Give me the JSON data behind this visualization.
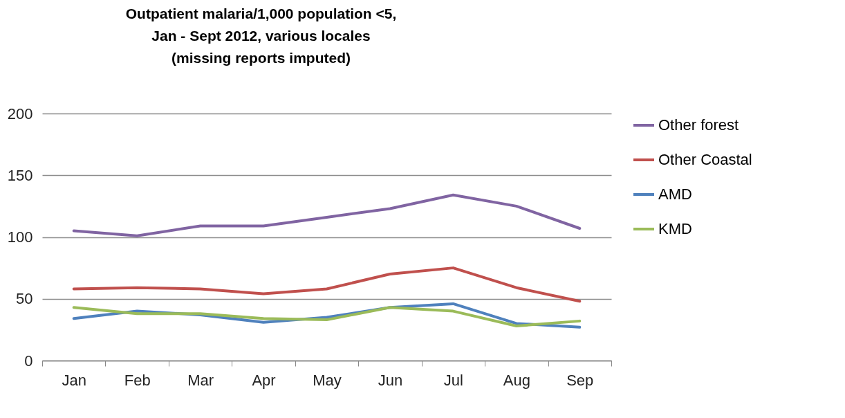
{
  "chart_data": {
    "type": "line",
    "title": "Outpatient malaria/1,000 population <5,\nJan - Sept 2012, various locales\n(missing reports imputed)",
    "categories": [
      "Jan",
      "Feb",
      "Mar",
      "Apr",
      "May",
      "Jun",
      "Jul",
      "Aug",
      "Sep"
    ],
    "series": [
      {
        "name": "Other forest",
        "color": "#8064a2",
        "values": [
          105,
          101,
          109,
          109,
          116,
          123,
          134,
          125,
          107
        ]
      },
      {
        "name": "Other Coastal",
        "color": "#c0504d",
        "values": [
          58,
          59,
          58,
          54,
          58,
          70,
          75,
          59,
          48
        ]
      },
      {
        "name": "AMD",
        "color": "#4f81bd",
        "values": [
          34,
          40,
          37,
          31,
          35,
          43,
          46,
          30,
          27
        ]
      },
      {
        "name": "KMD",
        "color": "#9bbb59",
        "values": [
          43,
          38,
          38,
          34,
          33,
          43,
          40,
          28,
          32
        ]
      }
    ],
    "ylim": [
      0,
      200
    ],
    "yticks": [
      0,
      50,
      100,
      150,
      200
    ],
    "grid": "y",
    "legend": "right",
    "marker": "none",
    "line_style": "solid"
  }
}
